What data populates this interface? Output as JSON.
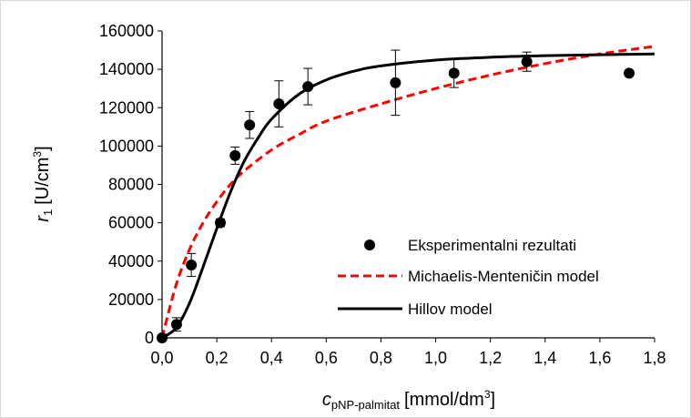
{
  "chart_data": {
    "type": "scatter",
    "xlabel": {
      "main": "c",
      "sub": "pNP-palmitat",
      "unit_pre": "[mmol/dm",
      "unit_sup": "3",
      "unit_post": "]"
    },
    "ylabel": {
      "main": "r",
      "sub": "1",
      "unit_pre": "[U/cm",
      "unit_sup": "3",
      "unit_post": "]"
    },
    "xlim": [
      0,
      1.8
    ],
    "ylim": [
      0,
      160000
    ],
    "x_ticks": [
      0,
      0.2,
      0.4,
      0.6,
      0.8,
      1.0,
      1.2,
      1.4,
      1.6,
      1.8
    ],
    "x_tick_labels": [
      "0,0",
      "0,2",
      "0,4",
      "0,6",
      "0,8",
      "1,0",
      "1,2",
      "1,4",
      "1,6",
      "1,8"
    ],
    "y_ticks": [
      0,
      20000,
      40000,
      60000,
      80000,
      100000,
      120000,
      140000,
      160000
    ],
    "y_tick_labels": [
      "0",
      "20000",
      "40000",
      "60000",
      "80000",
      "100000",
      "120000",
      "140000",
      "160000"
    ],
    "grid": false,
    "legend_position": "bottom-right",
    "series": [
      {
        "name": "Eksperimentalni rezultati",
        "kind": "markers",
        "color": "#000000",
        "x": [
          0.0,
          0.053,
          0.107,
          0.213,
          0.267,
          0.32,
          0.427,
          0.533,
          0.853,
          1.067,
          1.333,
          1.707
        ],
        "y": [
          0,
          7000,
          38000,
          60000,
          95000,
          111000,
          122000,
          131000,
          133000,
          138000,
          144000,
          138000
        ],
        "error": [
          0,
          3500,
          6000,
          2000,
          4500,
          7000,
          12000,
          9500,
          17000,
          7500,
          5000,
          0
        ]
      },
      {
        "name": "Michaelis-Menteničin model",
        "kind": "curve",
        "style": "dashed",
        "color": "#ff0000",
        "x": [
          0,
          0.05,
          0.1,
          0.15,
          0.2,
          0.25,
          0.3,
          0.4,
          0.5,
          0.6,
          0.8,
          1.0,
          1.2,
          1.4,
          1.6,
          1.8
        ],
        "y": [
          0,
          27000,
          46000,
          60000,
          71000,
          80000,
          87000,
          98000,
          106000,
          113000,
          122000,
          130000,
          137000,
          143000,
          148000,
          152000
        ]
      },
      {
        "name": "Hillov model",
        "kind": "curve",
        "style": "solid",
        "color": "#000000",
        "x": [
          0,
          0.05,
          0.1,
          0.15,
          0.2,
          0.25,
          0.3,
          0.35,
          0.4,
          0.5,
          0.6,
          0.7,
          0.8,
          1.0,
          1.2,
          1.4,
          1.6,
          1.8
        ],
        "y": [
          0,
          5000,
          18000,
          37000,
          57000,
          76000,
          92000,
          104000,
          114000,
          127000,
          134500,
          139000,
          141800,
          144800,
          146300,
          147100,
          147600,
          148000
        ]
      }
    ]
  }
}
